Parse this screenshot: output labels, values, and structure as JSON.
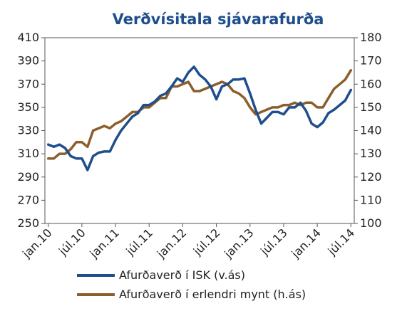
{
  "chart_data": {
    "type": "line",
    "title": "Verðvísitala sjávarafurða",
    "xlabel": "",
    "ylabel": "",
    "grid": false,
    "legend_position": "bottom",
    "x_ticks": [
      "jan.10",
      "júl.10",
      "jan.11",
      "júl.11",
      "jan.12",
      "júl.12",
      "jan.13",
      "júl.13",
      "jan.14",
      "júl.14"
    ],
    "y_left": {
      "lim": [
        250,
        410
      ],
      "ticks": [
        250,
        270,
        290,
        310,
        330,
        350,
        370,
        390,
        410
      ],
      "tick_labels": [
        "250",
        "270",
        "290",
        "310",
        "330",
        "350",
        "370",
        "390",
        "410"
      ]
    },
    "y_right": {
      "lim": [
        100,
        180
      ],
      "ticks": [
        100,
        110,
        120,
        130,
        140,
        150,
        160,
        170,
        180
      ],
      "tick_labels": [
        "100",
        "110",
        "120",
        "130",
        "140",
        "150",
        "160",
        "170",
        "180"
      ]
    },
    "series": [
      {
        "name": "Afurðaverð í ISK (v.ás)",
        "axis": "left",
        "color": "#1f4e8c",
        "values": [
          318,
          316,
          318,
          315,
          308,
          306,
          306,
          296,
          308,
          311,
          312,
          312,
          322,
          330,
          336,
          342,
          345,
          352,
          352,
          355,
          360,
          362,
          368,
          375,
          372,
          380,
          385,
          378,
          374,
          368,
          357,
          368,
          370,
          374,
          374,
          375,
          362,
          348,
          336,
          341,
          346,
          346,
          344,
          350,
          350,
          354,
          347,
          336,
          333,
          337,
          345,
          348,
          352,
          356,
          365
        ]
      },
      {
        "name": "Afurðaverð í erlendri mynt (h.ás)",
        "axis": "right",
        "color": "#8b5e2b",
        "values": [
          128,
          128,
          130,
          130,
          132,
          135,
          135,
          133,
          140,
          141,
          142,
          141,
          143,
          144,
          146,
          148,
          148,
          150,
          150,
          152,
          154,
          154,
          159,
          159,
          160,
          161,
          157,
          157,
          158,
          159,
          160,
          161,
          160,
          157,
          156,
          154,
          150,
          147,
          148,
          149,
          150,
          150,
          151,
          151,
          152,
          151,
          152,
          152,
          150,
          150,
          154,
          158,
          160,
          162,
          166
        ]
      }
    ]
  }
}
